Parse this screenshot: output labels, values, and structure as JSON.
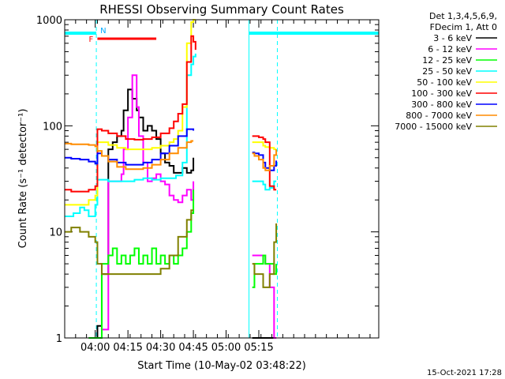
{
  "chart_data": {
    "type": "line",
    "title": "RHESSI Observing Summary Count Rates",
    "xlabel": "Start Time (10-May-02 03:48:22)",
    "ylabel": "Count Rate (s⁻¹ detector⁻¹)",
    "y_scale": "log",
    "ylim": [
      1,
      1000
    ],
    "xlim_minutes": [
      226,
      370
    ],
    "x_tick_labels": [
      "04:00",
      "04:15",
      "04:30",
      "04:45",
      "05:00",
      "05:15"
    ],
    "x_tick_minutes": [
      240,
      255,
      270,
      285,
      300,
      315
    ],
    "y_tick_labels": [
      "1",
      "10",
      "100",
      "1000"
    ],
    "y_tick_values": [
      1,
      10,
      100,
      1000
    ],
    "legend_header": [
      "Det 1,3,4,5,6,9,",
      "FDecim 1, Att 0"
    ],
    "footer_date": "15-Oct-2021 17:28",
    "annotations": {
      "night_label": "N",
      "flare_label": "F",
      "night_bars": [
        [
          226,
          240.5
        ],
        [
          310.5,
          370
        ]
      ],
      "flare_bar": [
        241,
        268
      ],
      "saa_lines": [
        240.5,
        310.5,
        323.5
      ]
    },
    "series": [
      {
        "name": "3 - 6 keV",
        "color": "#000000",
        "x": [
          237,
          240,
          241,
          243,
          246,
          248,
          250,
          252,
          253,
          255,
          257,
          259,
          260,
          262,
          264,
          266,
          268,
          270,
          272,
          274,
          276,
          278,
          280,
          282,
          284,
          285,
          312,
          313,
          315,
          317,
          318,
          320,
          322,
          323
        ],
        "y": [
          1,
          1,
          1.3,
          4,
          60,
          70,
          80,
          90,
          140,
          220,
          180,
          140,
          120,
          90,
          100,
          90,
          75,
          55,
          45,
          42,
          36,
          36,
          40,
          36,
          38,
          50,
          1,
          1,
          1,
          1,
          1,
          1,
          1,
          1
        ]
      },
      {
        "name": "6 - 12 keV",
        "color": "#ff00ff",
        "x": [
          237,
          240,
          241,
          243,
          246,
          248,
          250,
          252,
          253,
          255,
          257,
          259,
          260,
          262,
          264,
          266,
          268,
          270,
          272,
          274,
          276,
          278,
          280,
          282,
          284,
          285,
          312,
          313,
          315,
          317,
          318,
          320,
          322,
          323
        ],
        "y": [
          1,
          1,
          1,
          1.2,
          30,
          30,
          30,
          35,
          60,
          120,
          300,
          150,
          80,
          45,
          30,
          32,
          35,
          30,
          28,
          22,
          20,
          19,
          22,
          25,
          20,
          30,
          6,
          6,
          6,
          6,
          5,
          3,
          1,
          1
        ]
      },
      {
        "name": "12 - 25 keV",
        "color": "#00ff00",
        "x": [
          237,
          240,
          241,
          243,
          246,
          248,
          250,
          252,
          254,
          256,
          258,
          260,
          262,
          264,
          266,
          268,
          270,
          272,
          274,
          276,
          278,
          280,
          282,
          284,
          285,
          312,
          313,
          315,
          317,
          318,
          320,
          322,
          323
        ],
        "y": [
          1,
          1,
          1,
          5,
          6,
          7,
          5,
          6,
          5,
          6,
          7,
          5,
          6,
          5,
          7,
          5,
          6,
          5,
          6,
          5,
          6,
          7,
          10,
          15,
          25,
          3,
          5,
          5,
          6,
          5,
          5,
          4,
          5
        ]
      },
      {
        "name": "25 - 50 keV",
        "color": "#00ffff",
        "x": [
          226,
          230,
          233,
          235,
          237,
          240,
          241,
          243,
          246,
          250,
          254,
          258,
          262,
          266,
          270,
          274,
          277,
          280,
          282,
          284,
          285,
          286,
          312,
          313,
          315,
          317,
          318,
          320,
          322,
          323
        ],
        "y": [
          14,
          15,
          17,
          16,
          14,
          18,
          31,
          31,
          30,
          30,
          30,
          31,
          32,
          31,
          32,
          32,
          34,
          45,
          300,
          380,
          450,
          480,
          30,
          30,
          30,
          28,
          25,
          26,
          30,
          30
        ]
      },
      {
        "name": "50 - 100 keV",
        "color": "#ffff00",
        "x": [
          226,
          229,
          233,
          237,
          240,
          241,
          243,
          246,
          250,
          254,
          258,
          262,
          266,
          270,
          274,
          276,
          278,
          280,
          282,
          284,
          285,
          286,
          312,
          313,
          315,
          317,
          318,
          320,
          322,
          323
        ],
        "y": [
          18,
          18,
          18,
          20,
          22,
          70,
          70,
          66,
          62,
          60,
          60,
          60,
          62,
          65,
          70,
          75,
          90,
          150,
          600,
          950,
          1000,
          1000,
          70,
          70,
          70,
          65,
          63,
          62,
          60,
          60
        ]
      },
      {
        "name": "100 - 300 keV",
        "color": "#ff0000",
        "x": [
          226,
          229,
          233,
          237,
          240,
          241,
          243,
          246,
          250,
          254,
          258,
          262,
          266,
          270,
          274,
          276,
          278,
          280,
          282,
          284,
          285,
          286,
          312,
          313,
          315,
          317,
          318,
          320,
          322,
          323
        ],
        "y": [
          25,
          24,
          24,
          25,
          27,
          93,
          90,
          85,
          80,
          75,
          74,
          75,
          78,
          85,
          95,
          110,
          130,
          160,
          400,
          700,
          620,
          520,
          80,
          80,
          78,
          75,
          70,
          27,
          25,
          25
        ]
      },
      {
        "name": "300 - 800 keV",
        "color": "#0000ff",
        "x": [
          226,
          229,
          233,
          237,
          240,
          241,
          243,
          246,
          250,
          254,
          258,
          262,
          266,
          270,
          274,
          278,
          282,
          284,
          285,
          312,
          313,
          315,
          317,
          318,
          320,
          322,
          323
        ],
        "y": [
          50,
          49,
          48,
          46,
          44,
          55,
          52,
          48,
          45,
          43,
          43,
          45,
          48,
          55,
          65,
          80,
          93,
          93,
          90,
          56,
          55,
          53,
          45,
          40,
          38,
          42,
          47
        ]
      },
      {
        "name": "800 - 7000 keV",
        "color": "#ff8c00",
        "x": [
          226,
          229,
          233,
          237,
          240,
          241,
          243,
          246,
          250,
          254,
          258,
          262,
          266,
          270,
          274,
          278,
          282,
          284,
          285,
          312,
          313,
          315,
          317,
          318,
          320,
          322,
          323
        ],
        "y": [
          68,
          67,
          67,
          66,
          64,
          58,
          52,
          46,
          41,
          39,
          39,
          40,
          43,
          48,
          55,
          62,
          70,
          72,
          72,
          55,
          52,
          48,
          40,
          38,
          42,
          53,
          60
        ]
      },
      {
        "name": "7000 - 15000 keV",
        "color": "#808000",
        "x": [
          226,
          229,
          233,
          237,
          240,
          241,
          243,
          246,
          250,
          254,
          258,
          262,
          266,
          270,
          274,
          278,
          282,
          284,
          285,
          312,
          313,
          315,
          317,
          318,
          320,
          322,
          323
        ],
        "y": [
          10,
          11,
          10,
          9,
          8,
          5,
          4,
          4,
          4,
          4,
          4,
          4,
          4,
          4.5,
          6,
          9,
          13,
          16,
          16,
          5,
          4,
          4,
          3,
          3,
          4,
          8,
          12
        ]
      }
    ]
  }
}
